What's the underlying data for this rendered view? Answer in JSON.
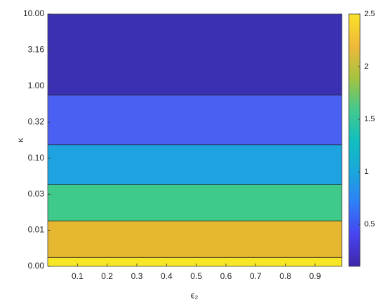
{
  "chart_data": {
    "type": "contour",
    "xlabel": "ϵ₂",
    "ylabel": "κ",
    "xlim": [
      0,
      0.99
    ],
    "xticks": [
      0.1,
      0.2,
      0.3,
      0.4,
      0.5,
      0.6,
      0.7,
      0.8,
      0.9
    ],
    "ylim": [
      0.00316,
      10
    ],
    "yscale": "log",
    "yticks": [
      {
        "value": 0.00316,
        "label": "0.00"
      },
      {
        "value": 0.01,
        "label": "0.01"
      },
      {
        "value": 0.0316,
        "label": "0.03"
      },
      {
        "value": 0.1,
        "label": "0.10"
      },
      {
        "value": 0.316,
        "label": "0.32"
      },
      {
        "value": 1,
        "label": "1.00"
      },
      {
        "value": 3.16,
        "label": "3.16"
      },
      {
        "value": 10,
        "label": "10.00"
      }
    ],
    "contour_bounds": [
      0.0042,
      0.0135,
      0.043,
      0.153,
      0.75
    ],
    "band_colors": [
      "#f7e625",
      "#e6b731",
      "#3fc98b",
      "#1ea2e0",
      "#4a60f2",
      "#3b30b2"
    ],
    "clim": [
      0.1,
      2.5
    ],
    "cticks": [
      0.5,
      1,
      1.5,
      2,
      2.5
    ],
    "colormap": [
      "#3e26a8",
      "#4743f0",
      "#2f7ef8",
      "#1aa7db",
      "#10bfbd",
      "#46c98a",
      "#a7c23f",
      "#f0b93a",
      "#f9e126"
    ]
  }
}
